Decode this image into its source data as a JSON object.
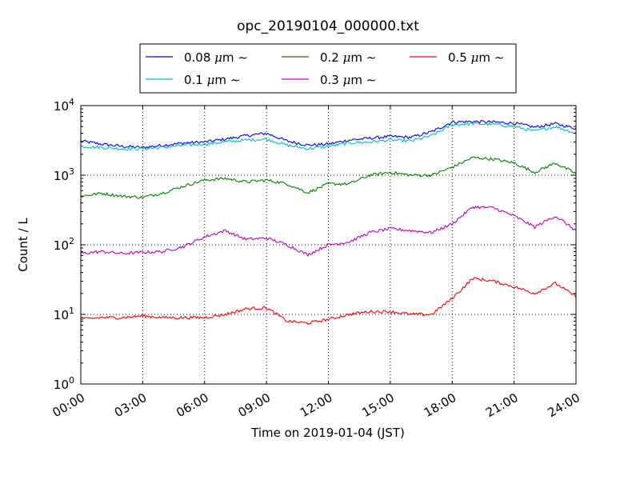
{
  "chart_data": {
    "type": "line",
    "title": "opc_20190104_000000.txt",
    "xlabel": "Time on 2019-01-04 (JST)",
    "ylabel": "Count / L",
    "yscale": "log",
    "ylim": [
      1,
      10000
    ],
    "xlim": [
      "00:00",
      "24:00"
    ],
    "x_ticks": [
      "00:00",
      "03:00",
      "06:00",
      "09:00",
      "12:00",
      "15:00",
      "18:00",
      "21:00",
      "24:00"
    ],
    "y_ticks": [
      {
        "base": "10",
        "exp": "0",
        "value": 1
      },
      {
        "base": "10",
        "exp": "1",
        "value": 10
      },
      {
        "base": "10",
        "exp": "2",
        "value": 100
      },
      {
        "base": "10",
        "exp": "3",
        "value": 1000
      },
      {
        "base": "10",
        "exp": "4",
        "value": 10000
      }
    ],
    "grid": true,
    "legend_placement": "top",
    "x": [
      "00:00",
      "01:00",
      "02:00",
      "03:00",
      "04:00",
      "05:00",
      "06:00",
      "07:00",
      "08:00",
      "09:00",
      "10:00",
      "11:00",
      "12:00",
      "13:00",
      "14:00",
      "15:00",
      "16:00",
      "17:00",
      "18:00",
      "19:00",
      "20:00",
      "21:00",
      "22:00",
      "23:00",
      "24:00"
    ],
    "series": [
      {
        "name": "0.08",
        "unit": "μm",
        "suffix": "∼",
        "color": "#0000ff",
        "values": [
          3100,
          2800,
          2600,
          2500,
          2700,
          2900,
          3000,
          3300,
          3700,
          4000,
          3100,
          2700,
          2800,
          3200,
          3400,
          3600,
          3500,
          4200,
          5800,
          5900,
          5800,
          5600,
          4900,
          5500,
          4700
        ]
      },
      {
        "name": "0.1",
        "unit": "μm",
        "suffix": "∼",
        "color": "#00bfbf",
        "values": [
          2600,
          2500,
          2400,
          2400,
          2500,
          2700,
          2800,
          3000,
          3200,
          3300,
          2700,
          2400,
          2600,
          2900,
          3000,
          3200,
          3100,
          3700,
          5300,
          5500,
          5400,
          5000,
          4300,
          5000,
          4000
        ]
      },
      {
        "name": "0.2",
        "unit": "μm",
        "suffix": "∼",
        "color": "#008000",
        "values": [
          500,
          550,
          500,
          480,
          560,
          700,
          850,
          900,
          800,
          850,
          750,
          560,
          750,
          750,
          1000,
          1100,
          1000,
          1000,
          1300,
          1800,
          1700,
          1500,
          1100,
          1500,
          1050
        ]
      },
      {
        "name": "0.3",
        "unit": "μm",
        "suffix": "∼",
        "color": "#bf00bf",
        "values": [
          75,
          80,
          75,
          78,
          80,
          95,
          130,
          160,
          120,
          125,
          100,
          72,
          100,
          110,
          150,
          170,
          160,
          150,
          200,
          350,
          340,
          260,
          180,
          260,
          160
        ]
      },
      {
        "name": "0.5",
        "unit": "μm",
        "suffix": "∼",
        "color": "#ff0000",
        "values": [
          8.5,
          9,
          9,
          9.5,
          9,
          9,
          9,
          10,
          12,
          12.5,
          8,
          7.5,
          8.5,
          10,
          11,
          11,
          10,
          10,
          17,
          33,
          30,
          25,
          20,
          28,
          18
        ]
      }
    ]
  }
}
